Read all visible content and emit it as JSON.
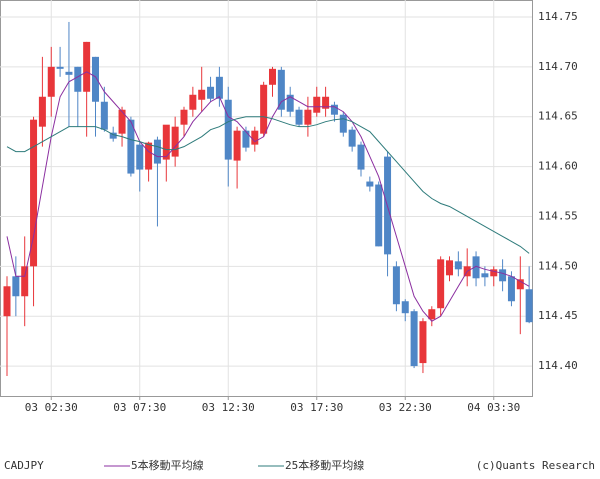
{
  "chart_data": {
    "type": "candlestick",
    "title": "CADJPY",
    "copyright": "(c)Quants Research",
    "categories": [
      null,
      null,
      null,
      null,
      null,
      "03 02:30",
      null,
      null,
      null,
      null,
      null,
      null,
      null,
      null,
      null,
      "03 07:30",
      null,
      null,
      null,
      null,
      null,
      null,
      null,
      null,
      null,
      "03 12:30",
      null,
      null,
      null,
      null,
      null,
      null,
      null,
      null,
      null,
      "03 17:30",
      null,
      null,
      null,
      null,
      null,
      null,
      null,
      null,
      null,
      "03 22:30",
      null,
      null,
      null,
      null,
      null,
      null,
      null,
      null,
      null,
      "04 03:30",
      null,
      null,
      null,
      null
    ],
    "open": [
      114.45,
      114.49,
      114.47,
      114.5,
      114.64,
      114.67,
      114.7,
      114.695,
      114.7,
      114.675,
      114.71,
      114.665,
      114.634,
      114.633,
      114.647,
      114.622,
      114.597,
      114.627,
      114.607,
      114.61,
      114.642,
      114.657,
      114.667,
      114.68,
      114.69,
      114.667,
      114.606,
      114.636,
      114.622,
      114.633,
      114.682,
      114.697,
      114.672,
      114.657,
      114.642,
      114.654,
      114.658,
      114.662,
      114.652,
      114.637,
      114.622,
      114.585,
      114.582,
      114.61,
      114.5,
      114.465,
      114.455,
      114.403,
      114.447,
      114.458,
      114.491,
      114.505,
      114.49,
      114.51,
      114.493,
      114.49,
      114.497,
      114.49,
      114.477,
      114.477
    ],
    "high": [
      114.49,
      114.51,
      114.53,
      114.65,
      114.71,
      114.72,
      114.72,
      114.745,
      114.7,
      114.725,
      114.71,
      114.68,
      114.64,
      114.66,
      114.65,
      114.625,
      114.625,
      114.63,
      114.64,
      114.65,
      114.66,
      114.68,
      114.7,
      114.69,
      114.7,
      114.68,
      114.64,
      114.64,
      114.64,
      114.685,
      114.7,
      114.7,
      114.68,
      114.66,
      114.67,
      114.68,
      114.68,
      114.665,
      114.655,
      114.64,
      114.625,
      114.59,
      114.585,
      114.615,
      114.505,
      114.467,
      114.457,
      114.448,
      114.46,
      114.51,
      114.51,
      114.515,
      114.518,
      114.515,
      114.5,
      114.5,
      114.507,
      114.495,
      114.51,
      114.5
    ],
    "low": [
      114.39,
      114.45,
      114.44,
      114.46,
      114.62,
      114.65,
      114.69,
      114.64,
      114.64,
      114.63,
      114.63,
      114.635,
      114.625,
      114.62,
      114.59,
      114.575,
      114.585,
      114.54,
      114.585,
      114.6,
      114.63,
      114.65,
      114.655,
      114.665,
      114.66,
      114.58,
      114.578,
      114.615,
      114.615,
      114.63,
      114.67,
      114.65,
      114.65,
      114.64,
      114.63,
      114.65,
      114.65,
      114.645,
      114.63,
      114.615,
      114.59,
      114.575,
      114.52,
      114.49,
      114.455,
      114.445,
      114.398,
      114.393,
      114.44,
      114.45,
      114.485,
      114.49,
      114.48,
      114.48,
      114.48,
      114.48,
      114.475,
      114.46,
      114.432,
      114.443
    ],
    "close": [
      114.48,
      114.47,
      114.5,
      114.647,
      114.67,
      114.7,
      114.698,
      114.692,
      114.675,
      114.725,
      114.665,
      114.637,
      114.628,
      114.657,
      114.593,
      114.597,
      114.624,
      114.603,
      114.642,
      114.64,
      114.657,
      114.672,
      114.677,
      114.668,
      114.668,
      114.607,
      114.636,
      114.619,
      114.636,
      114.682,
      114.698,
      114.657,
      114.655,
      114.642,
      114.657,
      114.67,
      114.67,
      114.652,
      114.634,
      114.62,
      114.597,
      114.58,
      114.52,
      114.512,
      114.462,
      114.453,
      114.4,
      114.445,
      114.457,
      114.507,
      114.506,
      114.497,
      114.5,
      114.488,
      114.489,
      114.497,
      114.485,
      114.465,
      114.487,
      114.444
    ],
    "up_color": "#e8363a",
    "down_color": "#4f86c6",
    "series": [
      {
        "name": "5本移動平均線",
        "color": "#8b2fa0",
        "values": [
          114.53,
          114.49,
          114.49,
          114.53,
          114.58,
          114.63,
          114.67,
          114.685,
          114.69,
          114.695,
          114.69,
          114.675,
          114.665,
          114.655,
          114.645,
          114.625,
          114.615,
          114.61,
          114.61,
          114.62,
          114.63,
          114.645,
          114.655,
          114.665,
          114.67,
          114.65,
          114.645,
          114.635,
          114.625,
          114.63,
          114.65,
          114.665,
          114.67,
          114.665,
          114.66,
          114.66,
          114.66,
          114.66,
          114.655,
          114.645,
          114.63,
          114.61,
          114.59,
          114.56,
          114.53,
          114.5,
          114.47,
          114.455,
          114.445,
          114.45,
          114.465,
          114.48,
          114.495,
          114.5,
          114.497,
          114.495,
          114.493,
          114.49,
          114.485,
          114.48
        ]
      },
      {
        "name": "25本移動平均線",
        "color": "#2e7b7b",
        "values": [
          114.62,
          114.615,
          114.615,
          114.62,
          114.625,
          114.63,
          114.635,
          114.64,
          114.64,
          114.64,
          114.64,
          114.637,
          114.632,
          114.63,
          114.627,
          114.625,
          114.622,
          114.62,
          114.617,
          114.617,
          114.62,
          114.625,
          114.63,
          114.637,
          114.64,
          114.645,
          114.648,
          114.65,
          114.65,
          114.65,
          114.648,
          114.645,
          114.642,
          114.64,
          114.64,
          114.642,
          114.645,
          114.647,
          114.648,
          114.645,
          114.64,
          114.635,
          114.625,
          114.615,
          114.605,
          114.595,
          114.585,
          114.575,
          114.568,
          114.563,
          114.56,
          114.555,
          114.55,
          114.545,
          114.54,
          114.535,
          114.53,
          114.525,
          114.52,
          114.513
        ]
      }
    ],
    "ylim": [
      114.37,
      114.767
    ],
    "yticks": [
      {
        "value": 114.4,
        "label": "114.40"
      },
      {
        "value": 114.45,
        "label": "114.45"
      },
      {
        "value": 114.5,
        "label": "114.50"
      },
      {
        "value": 114.55,
        "label": "114.55"
      },
      {
        "value": 114.6,
        "label": "114.60"
      },
      {
        "value": 114.65,
        "label": "114.65"
      },
      {
        "value": 114.7,
        "label": "114.70"
      },
      {
        "value": 114.75,
        "label": "114.75"
      }
    ],
    "grid": true
  }
}
